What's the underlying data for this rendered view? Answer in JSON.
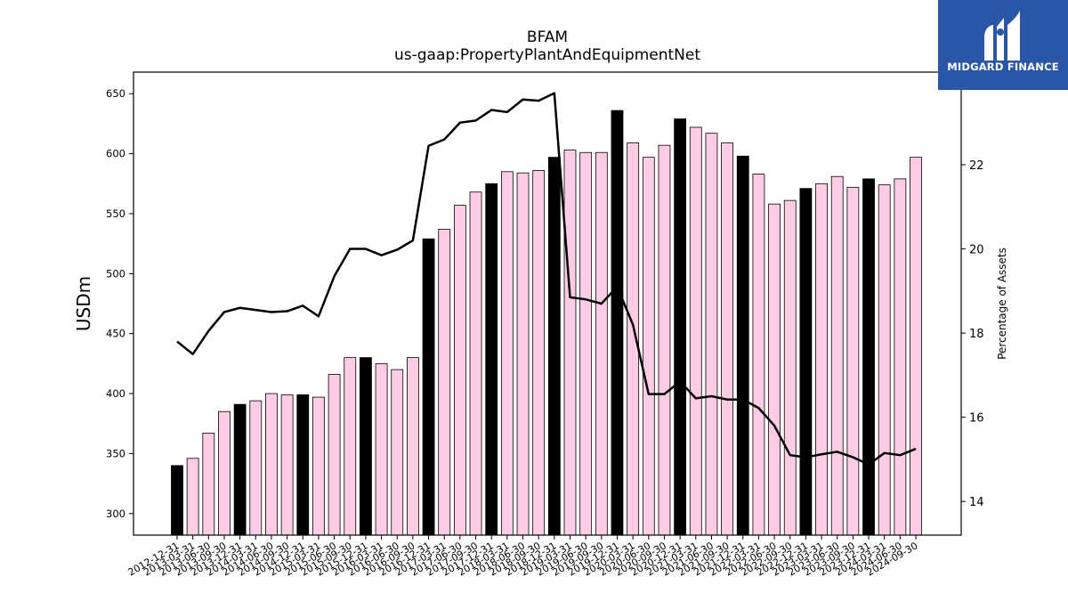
{
  "header": {
    "title": "BFAM",
    "subtitle": "us-gaap:PropertyPlantAndEquipmentNet"
  },
  "logo": {
    "text": "MIDGARD FINANCE",
    "icon": "midgard-logo-icon",
    "background": "#2a56a8"
  },
  "chart_data": {
    "type": "bar",
    "title": "BFAM",
    "subtitle": "us-gaap:PropertyPlantAndEquipmentNet",
    "ylabel": "USDm",
    "y2label": "Percentage of Assets",
    "ylim": [
      282,
      668
    ],
    "y2lim": [
      13.2,
      24.2
    ],
    "yticks": [
      300,
      350,
      400,
      450,
      500,
      550,
      600,
      650
    ],
    "y2ticks": [
      14,
      16,
      18,
      20,
      22
    ],
    "grid": false,
    "colors": {
      "annual": "#000000",
      "quarter": "#ffcce6",
      "line": "#000000"
    },
    "categories": [
      "2012-12-31",
      "2013-03-31",
      "2013-06-30",
      "2013-09-30",
      "2013-12-31",
      "2014-03-31",
      "2014-06-30",
      "2014-09-30",
      "2014-12-31",
      "2015-03-31",
      "2015-06-30",
      "2015-09-30",
      "2015-12-31",
      "2016-03-31",
      "2016-06-30",
      "2016-09-30",
      "2016-12-31",
      "2017-03-31",
      "2017-06-30",
      "2017-09-30",
      "2017-12-31",
      "2018-03-31",
      "2018-06-30",
      "2018-09-30",
      "2018-12-31",
      "2019-03-31",
      "2019-06-30",
      "2019-09-30",
      "2019-12-31",
      "2020-03-31",
      "2020-06-30",
      "2020-09-30",
      "2020-12-31",
      "2021-03-31",
      "2021-06-30",
      "2021-09-30",
      "2021-12-31",
      "2022-03-31",
      "2022-06-30",
      "2022-09-30",
      "2022-12-31",
      "2023-03-31",
      "2023-06-30",
      "2023-09-30",
      "2023-12-31",
      "2024-03-31",
      "2024-06-30",
      "2024-09-30"
    ],
    "annual": [
      true,
      false,
      false,
      false,
      true,
      false,
      false,
      false,
      true,
      false,
      false,
      false,
      true,
      false,
      false,
      false,
      true,
      false,
      false,
      false,
      true,
      false,
      false,
      false,
      true,
      false,
      false,
      false,
      true,
      false,
      false,
      false,
      true,
      false,
      false,
      false,
      true,
      false,
      false,
      false,
      true,
      false,
      false,
      false,
      true,
      false,
      false,
      false
    ],
    "series": [
      {
        "name": "USDm",
        "type": "bar",
        "values": [
          340,
          346,
          367,
          385,
          391,
          394,
          400,
          399,
          399,
          397,
          416,
          430,
          430,
          425,
          420,
          430,
          529,
          537,
          557,
          568,
          575,
          585,
          584,
          586,
          597,
          603,
          601,
          601,
          636,
          609,
          597,
          607,
          629,
          622,
          617,
          609,
          598,
          583,
          558,
          561,
          571,
          575,
          581,
          572,
          579,
          574,
          579,
          597
        ]
      },
      {
        "name": "Percentage of Assets",
        "type": "line",
        "axis": "right",
        "values": [
          17.8,
          17.5,
          18.05,
          18.5,
          18.6,
          18.55,
          18.5,
          18.52,
          18.65,
          18.4,
          19.35,
          20.0,
          20.0,
          19.85,
          19.98,
          20.2,
          22.45,
          22.6,
          23.0,
          23.05,
          23.3,
          23.25,
          23.55,
          23.52,
          23.7,
          18.85,
          18.8,
          18.7,
          19.1,
          18.2,
          16.55,
          16.55,
          16.85,
          16.45,
          16.5,
          16.42,
          16.42,
          16.22,
          15.8,
          15.1,
          15.05,
          15.12,
          15.18,
          15.05,
          14.88,
          15.15,
          15.1,
          15.25
        ]
      }
    ]
  }
}
